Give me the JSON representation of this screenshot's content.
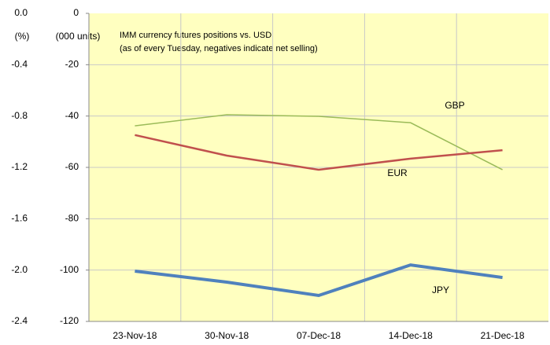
{
  "chart_data": {
    "type": "line",
    "annotations": [
      "IMM  currency futures positions vs. USD",
      "(as of every Tuesday, negatives indicate net selling)"
    ],
    "y_label": "(000  units)",
    "y2_label": "(%)",
    "categories": [
      "23-Nov-18",
      "30-Nov-18",
      "07-Dec-18",
      "14-Dec-18",
      "21-Dec-18"
    ],
    "series": [
      {
        "name": "GBP",
        "color": "#9bbb59",
        "values": [
          -43.8,
          -39.5,
          -40.1,
          -42.6,
          -60.9
        ]
      },
      {
        "name": "EUR",
        "color": "#c0504d",
        "values": [
          -47.4,
          -55.4,
          -60.9,
          -56.6,
          -53.3
        ]
      },
      {
        "name": "JPY",
        "color": "#4f81bd",
        "values": [
          -100.4,
          -104.7,
          -109.9,
          -98.0,
          -102.9
        ]
      }
    ],
    "ylim": [
      -120,
      0
    ],
    "yticks": [
      0,
      -20,
      -40,
      -60,
      -80,
      -100,
      -120
    ],
    "y2lim": [
      -2.4,
      0
    ],
    "y2ticks": [
      {
        "value": 0,
        "label": "0.0"
      },
      -0.4,
      -0.8,
      -1.2,
      -1.6,
      {
        "value": -2,
        "label": "-2.0"
      },
      -2.4
    ],
    "grid": true
  }
}
